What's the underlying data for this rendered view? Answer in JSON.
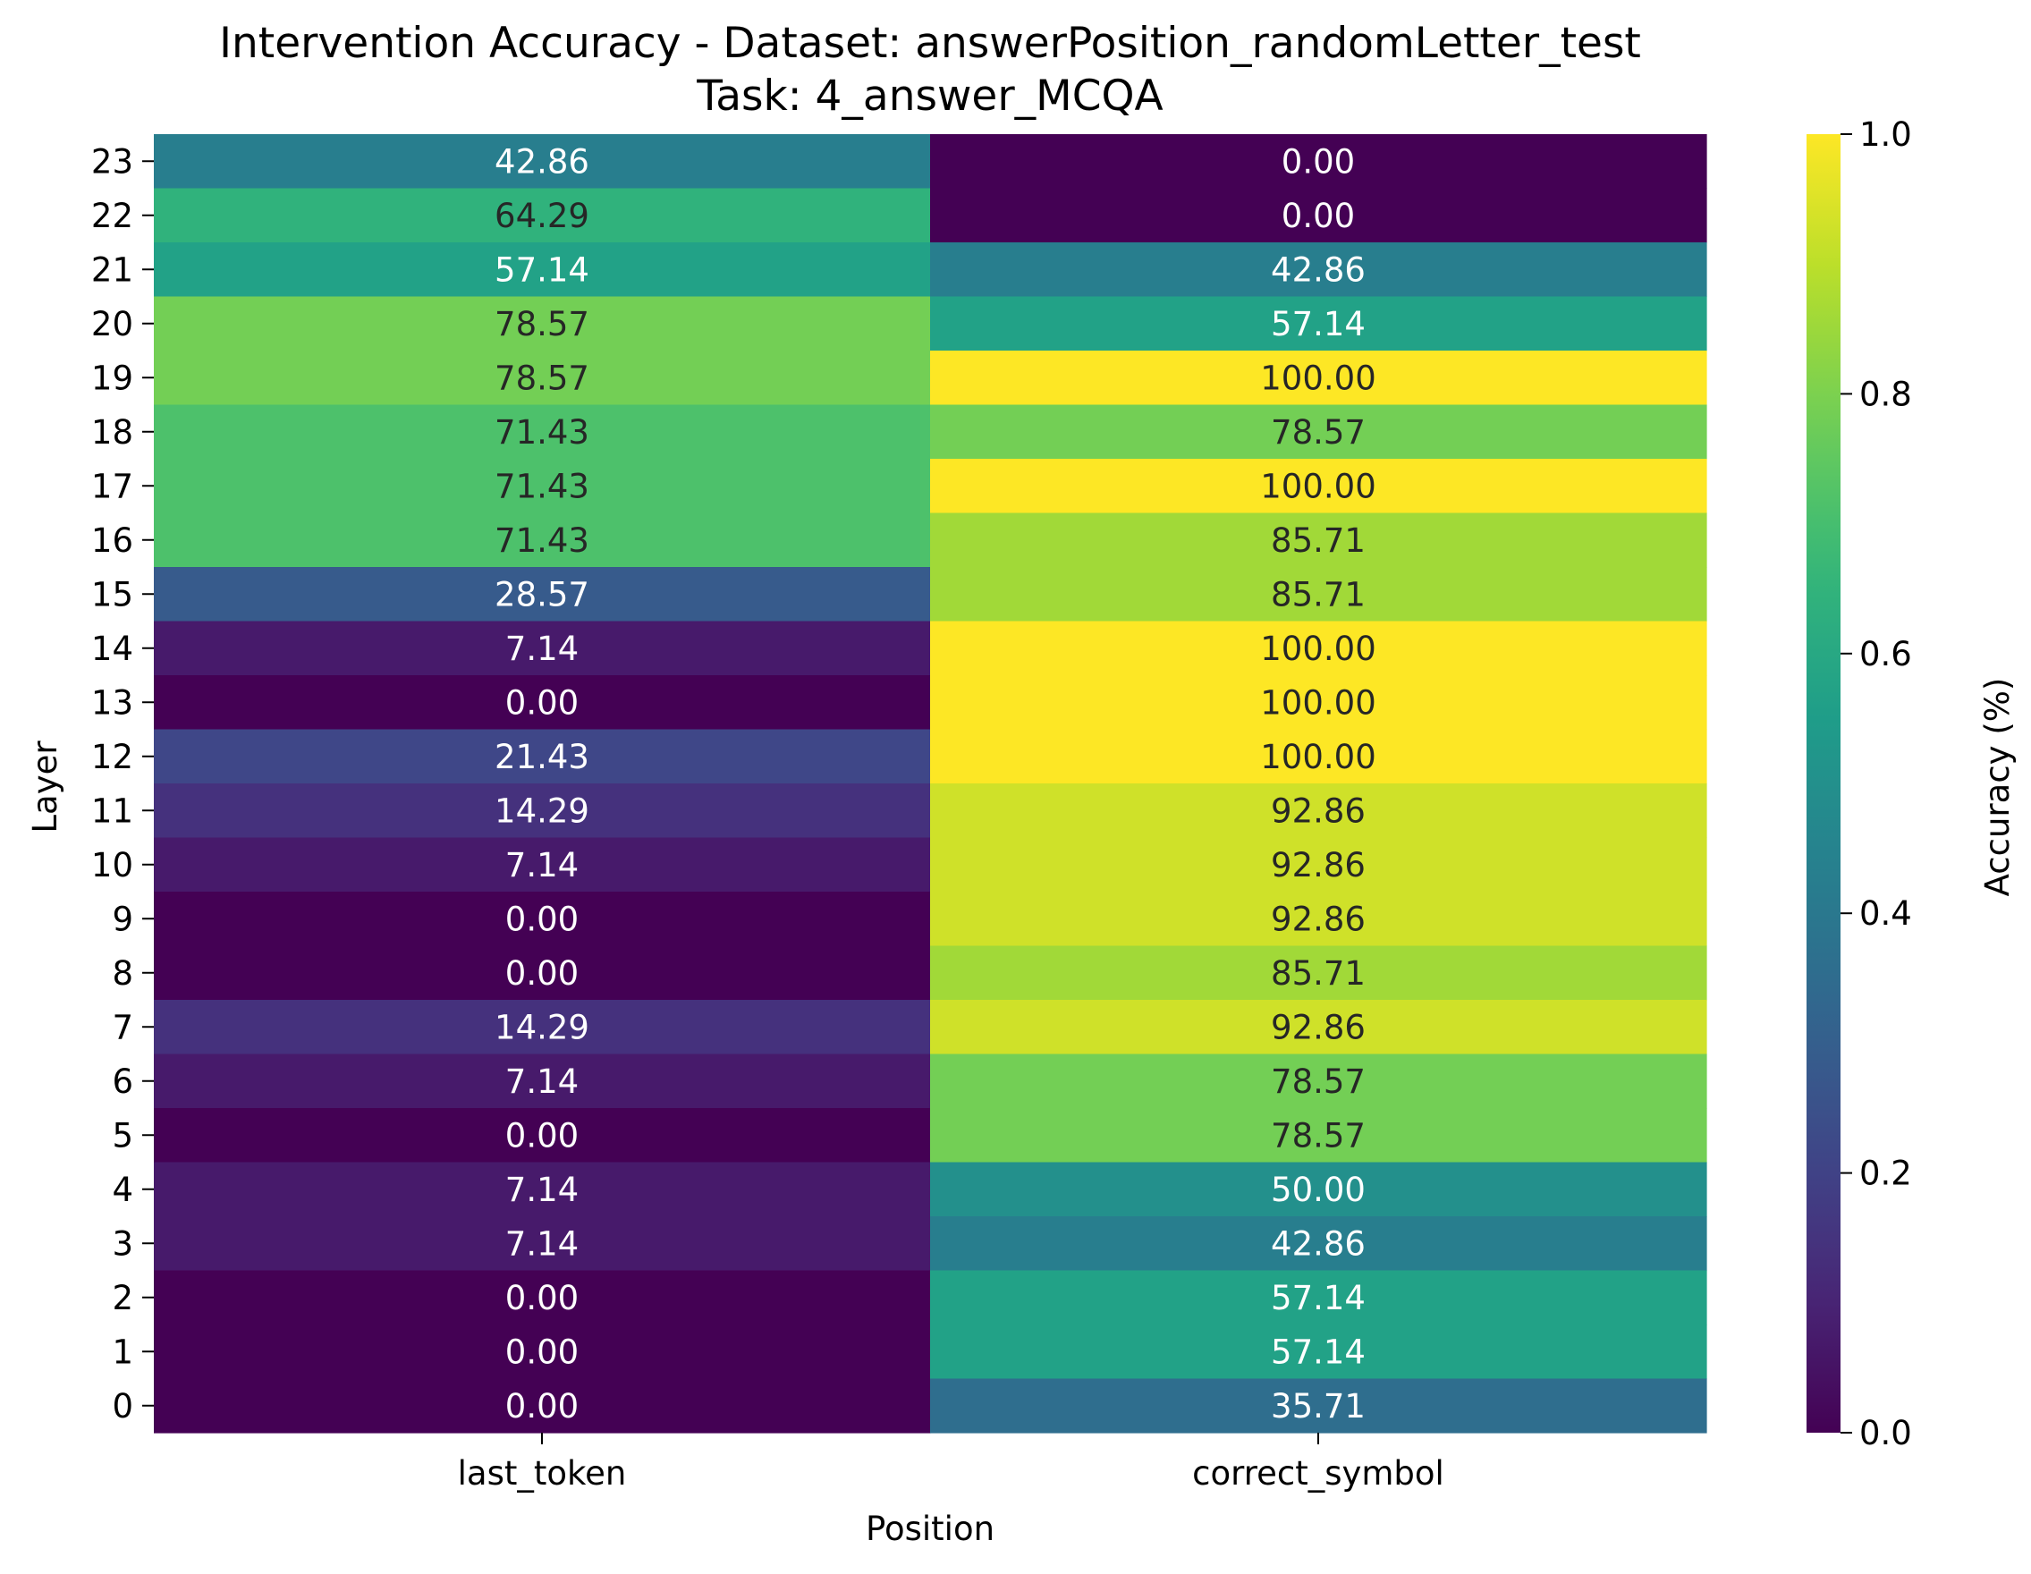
{
  "chart_data": {
    "type": "heatmap",
    "title": "Intervention Accuracy - Dataset: answerPosition_randomLetter_test",
    "subtitle": "Task: 4_answer_MCQA",
    "xlabel": "Position",
    "ylabel": "Layer",
    "colorbar_label": "Accuracy (%)",
    "colormap": "viridis",
    "vmin": 0.0,
    "vmax": 1.0,
    "colorbar_ticks": [
      "0.0",
      "0.2",
      "0.4",
      "0.6",
      "0.8",
      "1.0"
    ],
    "colorbar_tick_values": [
      0.0,
      0.2,
      0.4,
      0.6,
      0.8,
      1.0
    ],
    "columns": [
      "last_token",
      "correct_symbol"
    ],
    "rows": [
      "23",
      "22",
      "21",
      "20",
      "19",
      "18",
      "17",
      "16",
      "15",
      "14",
      "13",
      "12",
      "11",
      "10",
      "9",
      "8",
      "7",
      "6",
      "5",
      "4",
      "3",
      "2",
      "1",
      "0"
    ],
    "values": [
      [
        42.86,
        0.0
      ],
      [
        64.29,
        0.0
      ],
      [
        57.14,
        42.86
      ],
      [
        78.57,
        57.14
      ],
      [
        78.57,
        100.0
      ],
      [
        71.43,
        78.57
      ],
      [
        71.43,
        100.0
      ],
      [
        71.43,
        85.71
      ],
      [
        28.57,
        85.71
      ],
      [
        7.14,
        100.0
      ],
      [
        0.0,
        100.0
      ],
      [
        21.43,
        100.0
      ],
      [
        14.29,
        92.86
      ],
      [
        7.14,
        92.86
      ],
      [
        0.0,
        92.86
      ],
      [
        0.0,
        85.71
      ],
      [
        14.29,
        92.86
      ],
      [
        7.14,
        78.57
      ],
      [
        0.0,
        78.57
      ],
      [
        7.14,
        50.0
      ],
      [
        7.14,
        42.86
      ],
      [
        0.0,
        57.14
      ],
      [
        0.0,
        57.14
      ],
      [
        0.0,
        35.71
      ]
    ],
    "labels": [
      [
        "42.86",
        "0.00"
      ],
      [
        "64.29",
        "0.00"
      ],
      [
        "57.14",
        "42.86"
      ],
      [
        "78.57",
        "57.14"
      ],
      [
        "78.57",
        "100.00"
      ],
      [
        "71.43",
        "78.57"
      ],
      [
        "71.43",
        "100.00"
      ],
      [
        "71.43",
        "85.71"
      ],
      [
        "28.57",
        "85.71"
      ],
      [
        "7.14",
        "100.00"
      ],
      [
        "0.00",
        "100.00"
      ],
      [
        "21.43",
        "100.00"
      ],
      [
        "14.29",
        "92.86"
      ],
      [
        "7.14",
        "92.86"
      ],
      [
        "0.00",
        "92.86"
      ],
      [
        "0.00",
        "85.71"
      ],
      [
        "14.29",
        "92.86"
      ],
      [
        "7.14",
        "78.57"
      ],
      [
        "0.00",
        "78.57"
      ],
      [
        "7.14",
        "50.00"
      ],
      [
        "7.14",
        "42.86"
      ],
      [
        "0.00",
        "57.14"
      ],
      [
        "0.00",
        "57.14"
      ],
      [
        "0.00",
        "35.71"
      ]
    ]
  }
}
